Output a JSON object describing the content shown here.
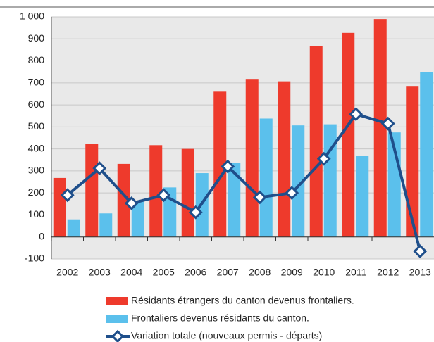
{
  "chart_data": {
    "type": "bar",
    "categories": [
      "2002",
      "2003",
      "2004",
      "2005",
      "2006",
      "2007",
      "2008",
      "2009",
      "2010",
      "2011",
      "2012",
      "2013"
    ],
    "series": [
      {
        "name": "Résidants étrangers du canton devenus frontaliers.",
        "color": "#ee3a2c",
        "values": [
          268,
          422,
          332,
          417,
          400,
          660,
          718,
          707,
          866,
          927,
          990,
          686
        ]
      },
      {
        "name": "Frontaliers devenus résidants du canton.",
        "color": "#5bc0ec",
        "values": [
          80,
          107,
          160,
          225,
          290,
          337,
          538,
          507,
          512,
          370,
          475,
          750
        ]
      },
      {
        "name": "Variation totale (nouveaux permis - départs)",
        "color": "#1f4f8b",
        "type": "line",
        "values": [
          190,
          312,
          153,
          190,
          112,
          320,
          180,
          200,
          355,
          558,
          515,
          -65
        ]
      }
    ],
    "ylim": [
      -100,
      1000
    ],
    "yticks": [
      -100,
      0,
      100,
      200,
      300,
      400,
      500,
      600,
      700,
      800,
      900,
      {
        "value": 1000,
        "label": "1 000"
      }
    ],
    "grid": true,
    "legend": "bottom"
  }
}
